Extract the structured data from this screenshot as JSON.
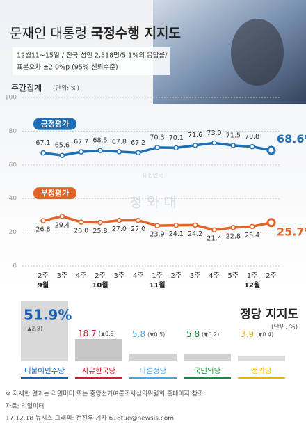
{
  "chart_data": [
    {
      "type": "line",
      "title_parts": [
        "문재인 대통령",
        "국정수행 지지도"
      ],
      "subtitle": [
        "12월11~15일 / 전국 성인 2,518명/5.1%의 응답률/",
        "표본오차 ±2.0%p (95% 신뢰수준)"
      ],
      "label": "주간집계",
      "unit": "(단위: %)",
      "categories": [
        "2주",
        "3주",
        "4주",
        "2주",
        "3주",
        "4주",
        "1주",
        "2주",
        "3주",
        "4주",
        "5주",
        "1주",
        "2주"
      ],
      "groups": [
        "9월",
        null,
        null,
        "10월",
        null,
        null,
        "11월",
        null,
        null,
        null,
        null,
        "12월",
        null
      ],
      "ylim": [
        0,
        100
      ],
      "yticks": [
        0,
        20,
        40,
        60,
        80,
        100
      ],
      "grid": true,
      "series": [
        {
          "name": "긍정평가",
          "color": "#1f6fb5",
          "values": [
            67.1,
            65.6,
            67.7,
            68.5,
            67.8,
            67.2,
            70.3,
            70.1,
            71.6,
            73.0,
            71.5,
            70.8,
            68.6
          ],
          "value_labels": [
            "67.1",
            "65.6",
            "67.7",
            "68.5",
            "67.8",
            "67.2",
            "70.3",
            "70.1",
            "71.6",
            "73.0",
            "71.5",
            "70.8",
            "68.6%"
          ]
        },
        {
          "name": "부정평가",
          "color": "#e0652a",
          "values": [
            26.8,
            29.4,
            26.0,
            25.8,
            27.0,
            27.0,
            23.9,
            24.1,
            24.2,
            21.4,
            22.8,
            23.4,
            25.7
          ],
          "value_labels": [
            "26.8",
            "29.4",
            "26.0",
            "25.8",
            "27.0",
            "27.0",
            "23.9",
            "24.1",
            "24.2",
            "21.4",
            "22.8",
            "23.4",
            "25.7%"
          ]
        }
      ]
    },
    {
      "type": "bar",
      "title": "정당 지지도",
      "unit": "(단위: %)",
      "categories": [
        "더불어민주당",
        "자유한국당",
        "바른정당",
        "국민의당",
        "정의당"
      ],
      "values": [
        51.9,
        18.7,
        5.8,
        5.8,
        3.9
      ],
      "value_labels": [
        "51.9%",
        "18.7",
        "5.8",
        "5.8",
        "3.9"
      ],
      "change_labels": [
        "(▲2.8)",
        "(▲0.9)",
        "(▼0.5)",
        "(▼0.2)",
        "(▼0.4)"
      ],
      "bar_colors": [
        "#d9d9d9",
        "#c6c6c6",
        "#d2d2d2",
        "#d2d2d2",
        "#dcdcdc"
      ],
      "colors": [
        "#1a62b0",
        "#d0202a",
        "#4aa3df",
        "#178a3c",
        "#e8b600"
      ]
    }
  ],
  "watermark": [
    "대한민국",
    "청 와 대"
  ],
  "footer": [
    "※ 자세한 결과는 리얼미터 또는 중앙선거여론조사심의위원회 홈페이지 참조",
    "자료: 리얼미터",
    "17.12.18 뉴시스 그래픽: 전진우 기자 618tue@newsis.com"
  ]
}
